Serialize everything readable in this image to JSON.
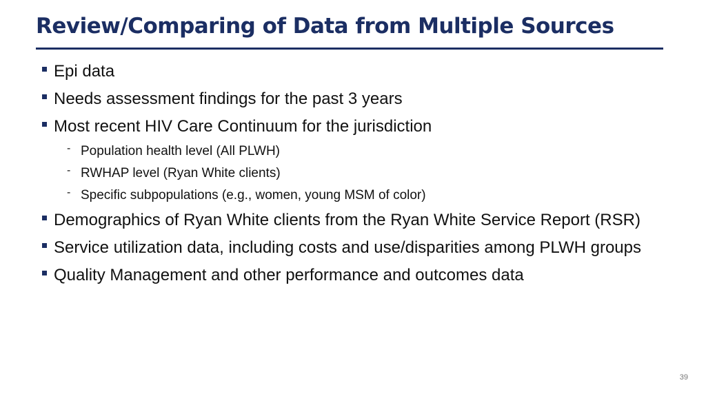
{
  "title": "Review/Comparing of Data from Multiple Sources",
  "bullets": [
    {
      "text": "Epi data"
    },
    {
      "text": "Needs assessment findings for the past 3 years"
    },
    {
      "text": "Most recent HIV Care Continuum for the jurisdiction",
      "sub": [
        "Population health level (All PLWH)",
        "RWHAP level (Ryan White clients)",
        "Specific subpopulations (e.g., women, young MSM of color)"
      ]
    },
    {
      "text": "Demographics of Ryan White clients from the Ryan White Service Report (RSR)"
    },
    {
      "text": "Service utilization data, including costs and use/disparities among PLWH groups"
    },
    {
      "text": "Quality Management and other performance and outcomes data"
    }
  ],
  "page_number": "39"
}
